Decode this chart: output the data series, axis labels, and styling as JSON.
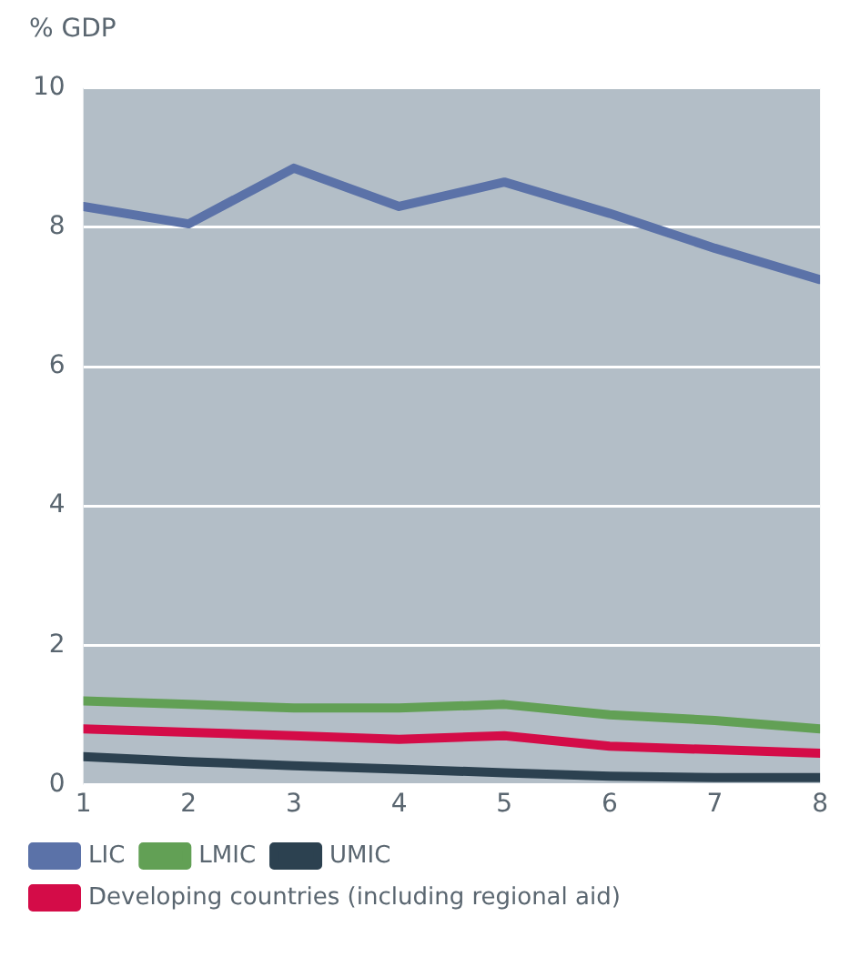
{
  "chart_data": {
    "type": "line",
    "ylabel": "% GDP",
    "x": [
      1,
      2,
      3,
      4,
      5,
      6,
      7,
      8
    ],
    "xlim": [
      1,
      8
    ],
    "xticks": [
      1,
      2,
      3,
      4,
      5,
      6,
      7,
      8
    ],
    "ylim": [
      0,
      10
    ],
    "yticks": [
      0,
      2,
      4,
      6,
      8,
      10
    ],
    "grid": "y",
    "legend": "bottom",
    "marker": "none",
    "line_style": "solid",
    "series": [
      {
        "name": "LIC",
        "color": "#5b72a8",
        "values": [
          8.3,
          8.05,
          8.85,
          8.3,
          8.65,
          8.2,
          7.7,
          7.25
        ]
      },
      {
        "name": "LMIC",
        "color": "#62a055",
        "values": [
          1.2,
          1.15,
          1.1,
          1.1,
          1.15,
          1.0,
          0.92,
          0.8
        ]
      },
      {
        "name": "UMIC",
        "color": "#2c4150",
        "values": [
          0.4,
          0.33,
          0.27,
          0.22,
          0.17,
          0.12,
          0.1,
          0.1
        ]
      },
      {
        "name": "Developing countries (including regional aid)",
        "color": "#d40c48",
        "values": [
          0.8,
          0.75,
          0.7,
          0.65,
          0.7,
          0.55,
          0.5,
          0.45
        ]
      }
    ]
  }
}
